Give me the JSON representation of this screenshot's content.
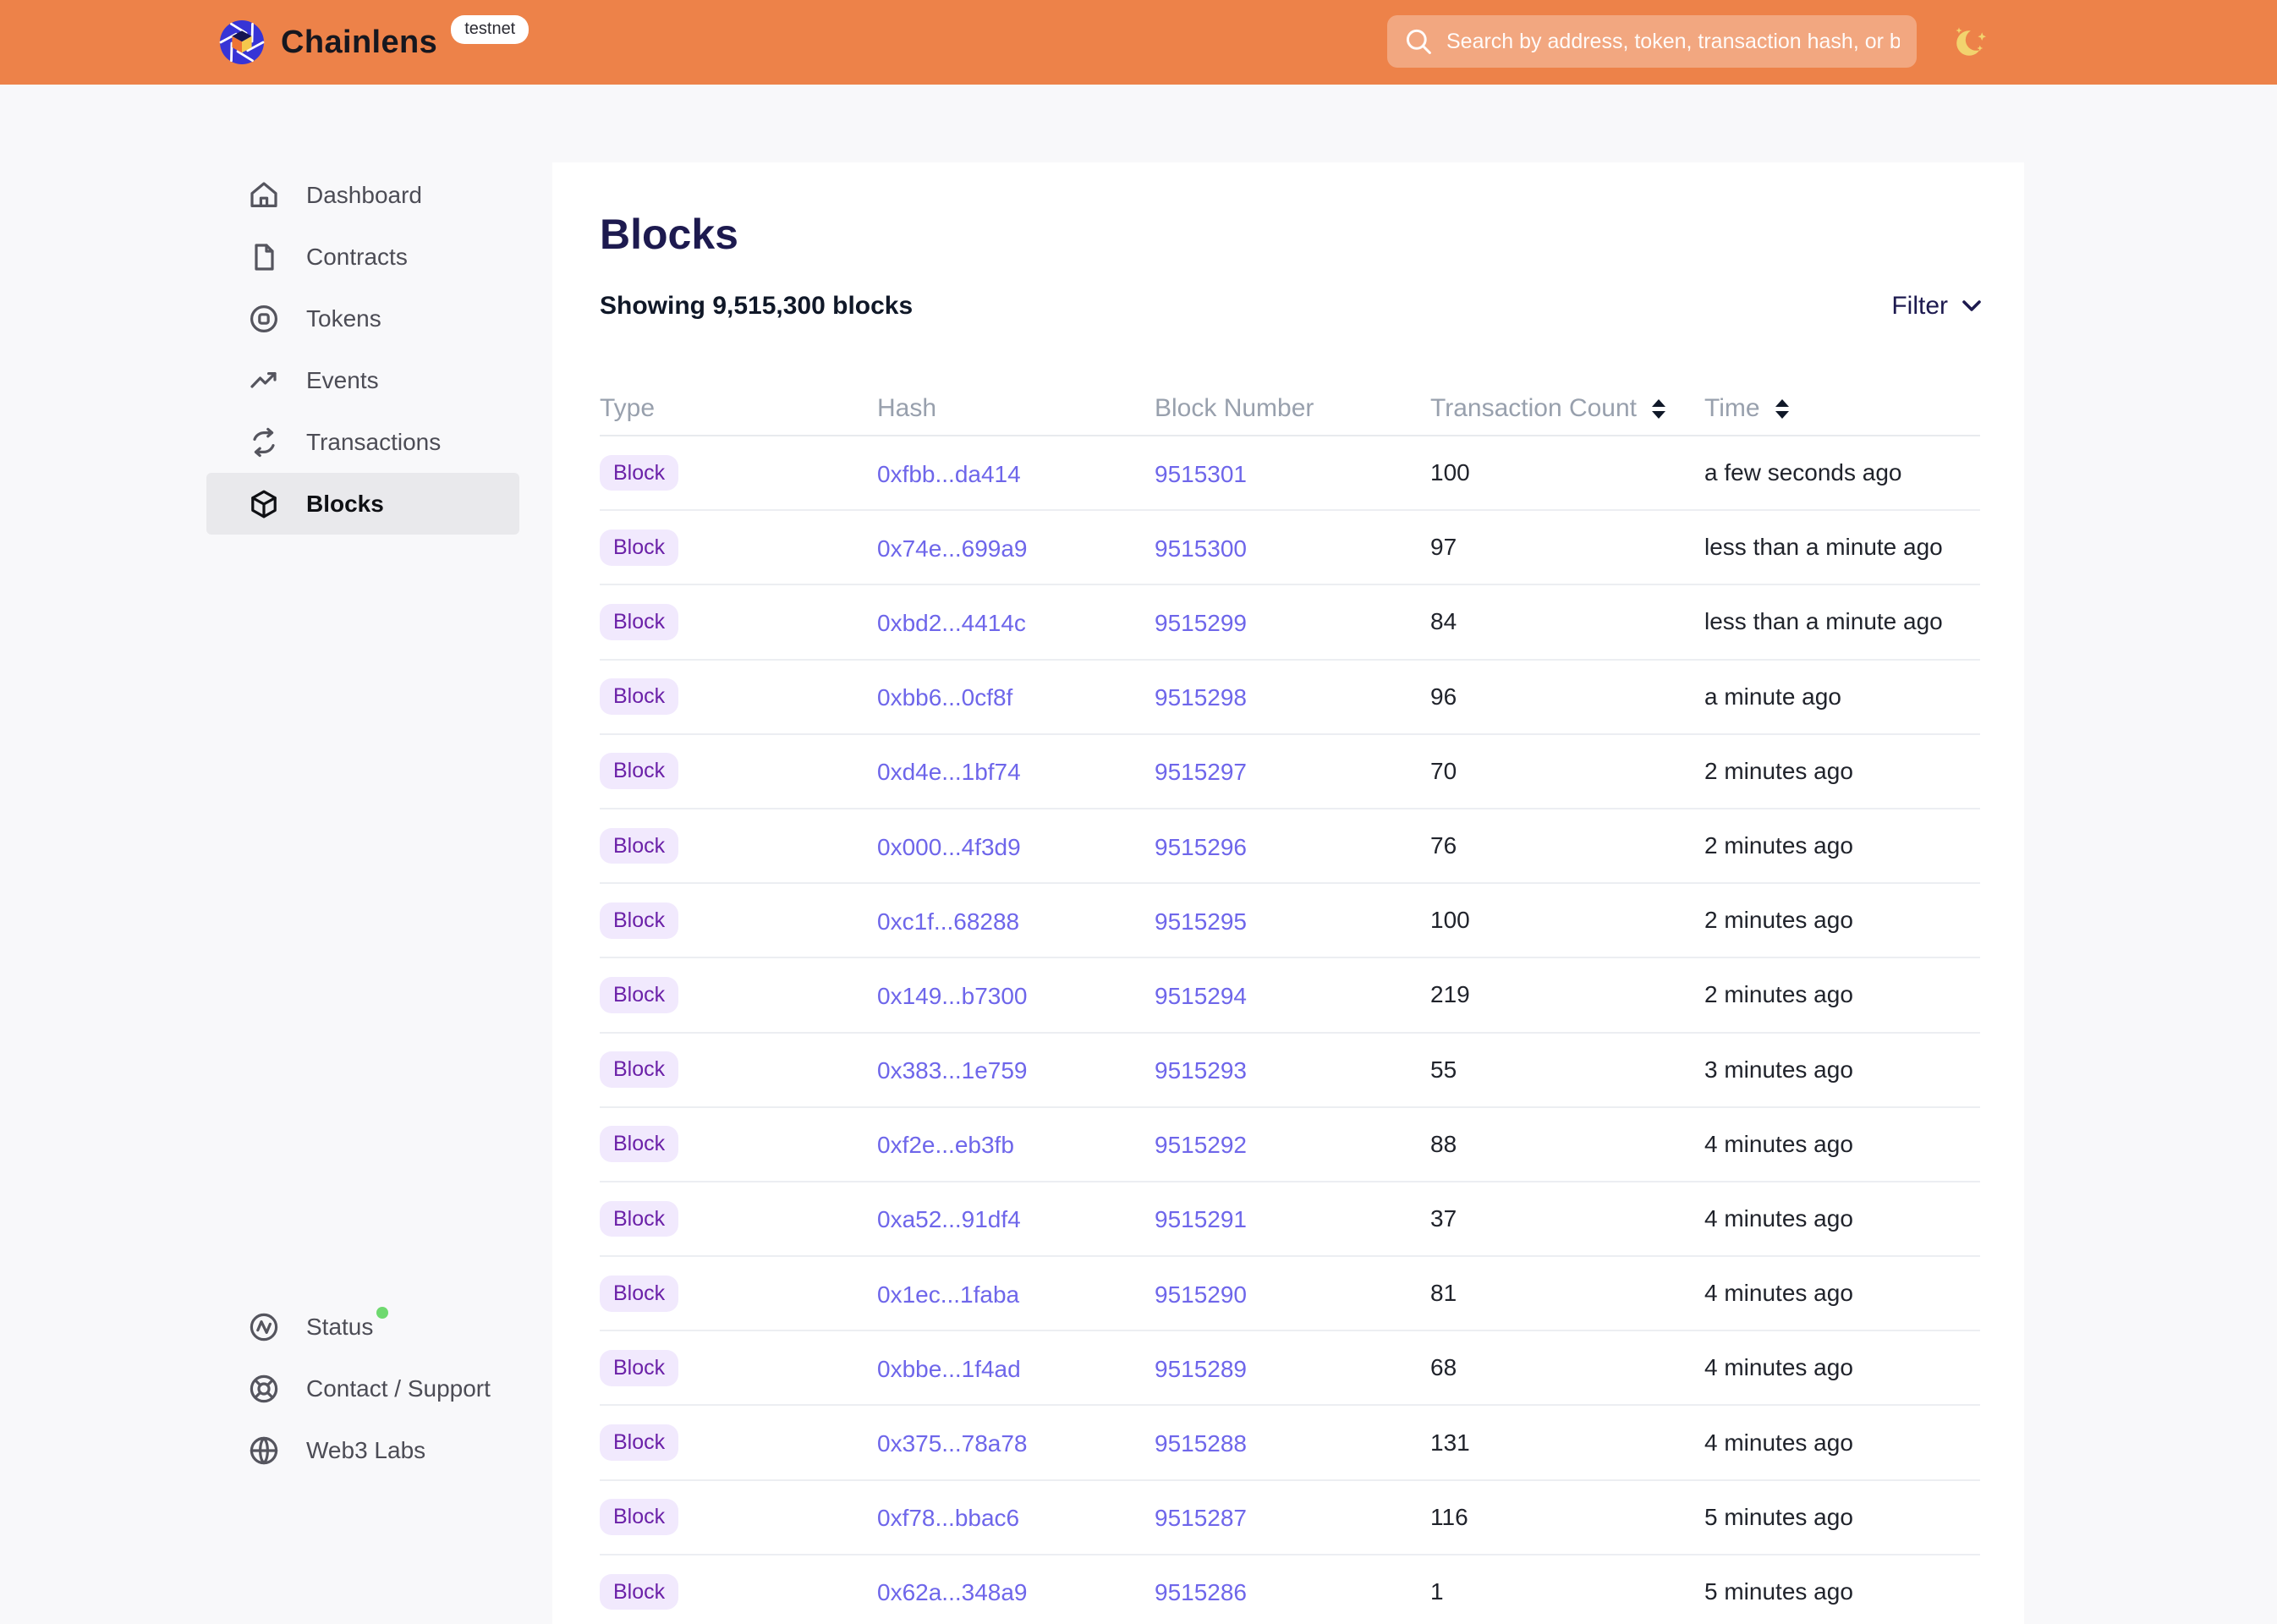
{
  "header": {
    "brand": "Chainlens",
    "environment_badge": "testnet",
    "search": {
      "placeholder": "Search by address, token, transaction hash, or block number"
    },
    "theme_toggle_icon": "moon-icon",
    "colors": {
      "background": "#ED8249",
      "search_field": "rgba(255,255,255,0.30)",
      "moon": "#F2D36E"
    }
  },
  "sidebar": {
    "items": [
      {
        "id": "dashboard",
        "label": "Dashboard",
        "icon": "home",
        "active": false
      },
      {
        "id": "contracts",
        "label": "Contracts",
        "icon": "document",
        "active": false
      },
      {
        "id": "tokens",
        "label": "Tokens",
        "icon": "token",
        "active": false
      },
      {
        "id": "events",
        "label": "Events",
        "icon": "trend",
        "active": false
      },
      {
        "id": "transactions",
        "label": "Transactions",
        "icon": "repeat",
        "active": false
      },
      {
        "id": "blocks",
        "label": "Blocks",
        "icon": "cube",
        "active": true
      }
    ],
    "footer_items": [
      {
        "id": "status",
        "label": "Status",
        "icon": "activity",
        "status_dot_color": "#6FD96F"
      },
      {
        "id": "contact-support",
        "label": "Contact / Support",
        "icon": "lifebuoy"
      },
      {
        "id": "web3-labs",
        "label": "Web3 Labs",
        "icon": "globe"
      }
    ]
  },
  "main": {
    "title": "Blocks",
    "summary": "Showing 9,515,300 blocks",
    "filter_label": "Filter"
  },
  "table": {
    "columns": [
      {
        "key": "type",
        "label": "Type",
        "sortable": false
      },
      {
        "key": "hash",
        "label": "Hash",
        "sortable": false
      },
      {
        "key": "block_number",
        "label": "Block Number",
        "sortable": false
      },
      {
        "key": "transaction_count",
        "label": "Transaction Count",
        "sortable": true
      },
      {
        "key": "time",
        "label": "Time",
        "sortable": true
      }
    ],
    "rows": [
      {
        "type": "Block",
        "hash": "0xfbb...da414",
        "block_number": "9515301",
        "transaction_count": "100",
        "time": "a few seconds ago"
      },
      {
        "type": "Block",
        "hash": "0x74e...699a9",
        "block_number": "9515300",
        "transaction_count": "97",
        "time": "less than a minute ago"
      },
      {
        "type": "Block",
        "hash": "0xbd2...4414c",
        "block_number": "9515299",
        "transaction_count": "84",
        "time": "less than a minute ago"
      },
      {
        "type": "Block",
        "hash": "0xbb6...0cf8f",
        "block_number": "9515298",
        "transaction_count": "96",
        "time": "a minute ago"
      },
      {
        "type": "Block",
        "hash": "0xd4e...1bf74",
        "block_number": "9515297",
        "transaction_count": "70",
        "time": "2 minutes ago"
      },
      {
        "type": "Block",
        "hash": "0x000...4f3d9",
        "block_number": "9515296",
        "transaction_count": "76",
        "time": "2 minutes ago"
      },
      {
        "type": "Block",
        "hash": "0xc1f...68288",
        "block_number": "9515295",
        "transaction_count": "100",
        "time": "2 minutes ago"
      },
      {
        "type": "Block",
        "hash": "0x149...b7300",
        "block_number": "9515294",
        "transaction_count": "219",
        "time": "2 minutes ago"
      },
      {
        "type": "Block",
        "hash": "0x383...1e759",
        "block_number": "9515293",
        "transaction_count": "55",
        "time": "3 minutes ago"
      },
      {
        "type": "Block",
        "hash": "0xf2e...eb3fb",
        "block_number": "9515292",
        "transaction_count": "88",
        "time": "4 minutes ago"
      },
      {
        "type": "Block",
        "hash": "0xa52...91df4",
        "block_number": "9515291",
        "transaction_count": "37",
        "time": "4 minutes ago"
      },
      {
        "type": "Block",
        "hash": "0x1ec...1faba",
        "block_number": "9515290",
        "transaction_count": "81",
        "time": "4 minutes ago"
      },
      {
        "type": "Block",
        "hash": "0xbbe...1f4ad",
        "block_number": "9515289",
        "transaction_count": "68",
        "time": "4 minutes ago"
      },
      {
        "type": "Block",
        "hash": "0x375...78a78",
        "block_number": "9515288",
        "transaction_count": "131",
        "time": "4 minutes ago"
      },
      {
        "type": "Block",
        "hash": "0xf78...bbac6",
        "block_number": "9515287",
        "transaction_count": "116",
        "time": "5 minutes ago"
      },
      {
        "type": "Block",
        "hash": "0x62a...348a9",
        "block_number": "9515286",
        "transaction_count": "1",
        "time": "5 minutes ago"
      }
    ]
  },
  "colors": {
    "page_background": "#F8F8FA",
    "card_background": "#FFFFFF",
    "title_navy": "#1D1A4F",
    "link_purple": "#6E66EA",
    "badge_background": "#F1E9FD",
    "badge_text": "#6B21A8",
    "nav_active_background": "#E9E9EC",
    "status_dot_green": "#6FD96F"
  }
}
